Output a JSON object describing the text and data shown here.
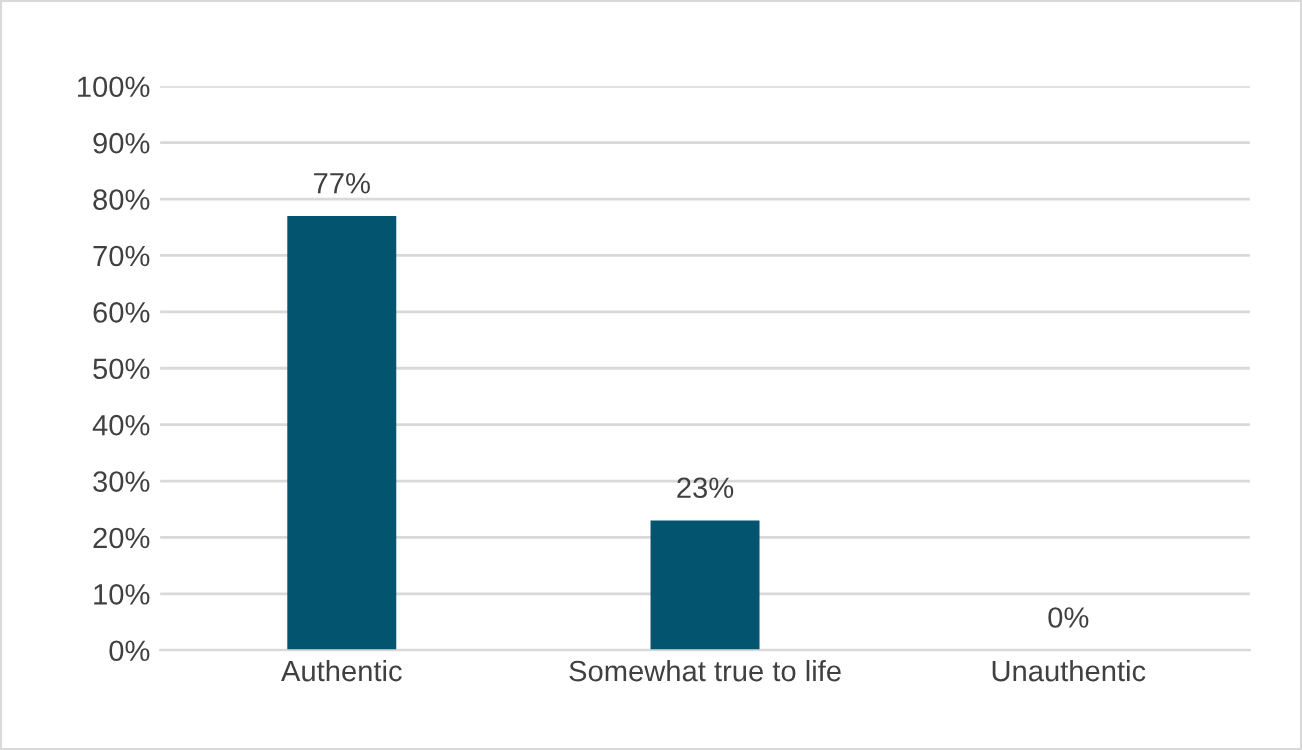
{
  "chart_data": {
    "type": "bar",
    "categories": [
      "Authentic",
      "Somewhat true to life",
      "Unauthentic"
    ],
    "values": [
      77,
      23,
      0
    ],
    "color": "#03546f",
    "value_labels": [
      "77%",
      "23%",
      "0%"
    ],
    "ylim": [
      0,
      100
    ],
    "yticks": [
      {
        "value": 0,
        "label": "0%"
      },
      {
        "value": 10,
        "label": "10%"
      },
      {
        "value": 20,
        "label": "20%"
      },
      {
        "value": 30,
        "label": "30%"
      },
      {
        "value": 40,
        "label": "40%"
      },
      {
        "value": 50,
        "label": "50%"
      },
      {
        "value": 60,
        "label": "60%"
      },
      {
        "value": 70,
        "label": "70%"
      },
      {
        "value": 80,
        "label": "80%"
      },
      {
        "value": 90,
        "label": "90%"
      },
      {
        "value": 100,
        "label": "100%"
      }
    ],
    "grid": "y",
    "legend": false
  }
}
